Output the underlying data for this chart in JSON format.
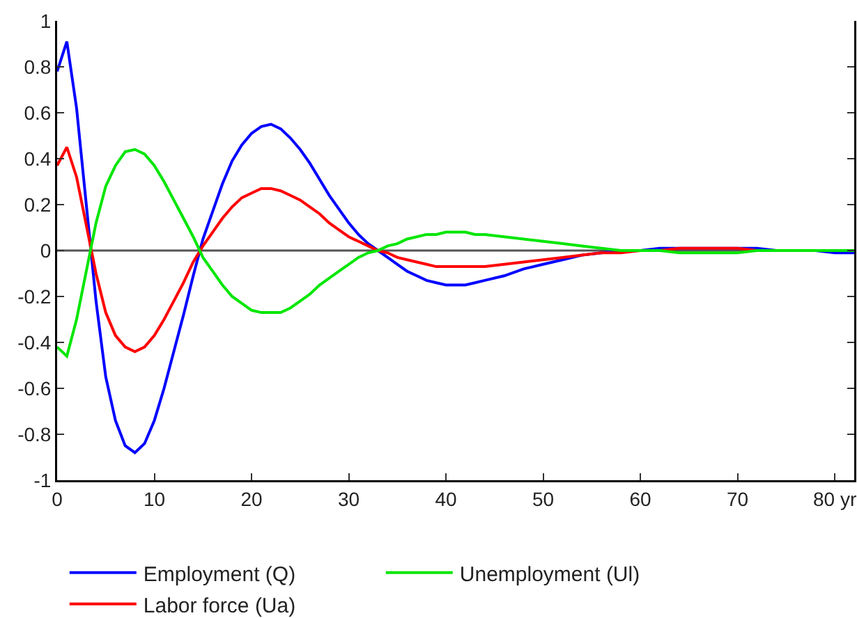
{
  "chart_data": {
    "type": "line",
    "x": [
      0,
      1,
      2,
      3,
      4,
      5,
      6,
      7,
      8,
      9,
      10,
      11,
      12,
      13,
      14,
      15,
      16,
      17,
      18,
      19,
      20,
      21,
      22,
      23,
      24,
      25,
      26,
      27,
      28,
      29,
      30,
      31,
      32,
      33,
      34,
      35,
      36,
      37,
      38,
      39,
      40,
      41,
      42,
      43,
      44,
      46,
      48,
      50,
      52,
      54,
      56,
      58,
      60,
      62,
      64,
      66,
      68,
      70,
      72,
      74,
      76,
      78,
      80,
      82
    ],
    "series": [
      {
        "name": "Employment (Q)",
        "color": "#0000ff",
        "values": [
          0.78,
          0.91,
          0.62,
          0.2,
          -0.22,
          -0.55,
          -0.74,
          -0.85,
          -0.88,
          -0.84,
          -0.74,
          -0.6,
          -0.44,
          -0.28,
          -0.11,
          0.05,
          0.17,
          0.29,
          0.39,
          0.46,
          0.51,
          0.54,
          0.55,
          0.53,
          0.49,
          0.44,
          0.38,
          0.31,
          0.24,
          0.18,
          0.12,
          0.07,
          0.03,
          0,
          -0.03,
          -0.06,
          -0.09,
          -0.11,
          -0.13,
          -0.14,
          -0.15,
          -0.15,
          -0.15,
          -0.14,
          -0.13,
          -0.11,
          -0.08,
          -0.06,
          -0.04,
          -0.02,
          -0.01,
          0,
          0,
          0.01,
          0.01,
          0.01,
          0.01,
          0.01,
          0.01,
          0,
          0,
          0,
          -0.01,
          -0.01
        ]
      },
      {
        "name": "Labor force (Ua)",
        "color": "#ff0000",
        "values": [
          0.37,
          0.45,
          0.32,
          0.11,
          -0.1,
          -0.27,
          -0.37,
          -0.42,
          -0.44,
          -0.42,
          -0.37,
          -0.3,
          -0.22,
          -0.14,
          -0.05,
          0.02,
          0.08,
          0.14,
          0.19,
          0.23,
          0.25,
          0.27,
          0.27,
          0.26,
          0.24,
          0.22,
          0.19,
          0.16,
          0.12,
          0.09,
          0.06,
          0.04,
          0.02,
          0,
          -0.01,
          -0.03,
          -0.04,
          -0.05,
          -0.06,
          -0.07,
          -0.07,
          -0.07,
          -0.07,
          -0.07,
          -0.07,
          -0.06,
          -0.05,
          -0.04,
          -0.03,
          -0.02,
          -0.01,
          -0.01,
          0,
          0,
          0.01,
          0.01,
          0.01,
          0.01,
          0,
          0,
          null,
          null,
          null,
          null
        ]
      },
      {
        "name": "Unemployment (Ul)",
        "color": "#00e600",
        "values": [
          -0.42,
          -0.46,
          -0.3,
          -0.09,
          0.12,
          0.28,
          0.37,
          0.43,
          0.44,
          0.42,
          0.37,
          0.3,
          0.22,
          0.14,
          0.06,
          -0.03,
          -0.09,
          -0.15,
          -0.2,
          -0.23,
          -0.26,
          -0.27,
          -0.27,
          -0.27,
          -0.25,
          -0.22,
          -0.19,
          -0.15,
          -0.12,
          -0.09,
          -0.06,
          -0.03,
          -0.01,
          0,
          0.02,
          0.03,
          0.05,
          0.06,
          0.07,
          0.07,
          0.08,
          0.08,
          0.08,
          0.07,
          0.07,
          0.06,
          0.05,
          0.04,
          0.03,
          0.02,
          0.01,
          0,
          0,
          0,
          -0.01,
          -0.01,
          -0.01,
          -0.01,
          0,
          0,
          0,
          0,
          0,
          0
        ]
      }
    ],
    "xlim": [
      0,
      82
    ],
    "xticks": [
      0,
      10,
      20,
      30,
      40,
      50,
      60,
      70,
      {
        "value": 80,
        "label": "80 yr"
      }
    ],
    "ylim": [
      -1,
      1
    ],
    "yticks": [
      -1,
      -0.8,
      -0.6,
      -0.4,
      -0.2,
      0,
      0.2,
      0.4,
      0.6,
      0.8,
      1
    ],
    "ref_lines": [
      {
        "axis": "y",
        "value": 0,
        "color": "#555555"
      }
    ],
    "line_style": "solid",
    "grid": false,
    "legend": "bottom"
  }
}
